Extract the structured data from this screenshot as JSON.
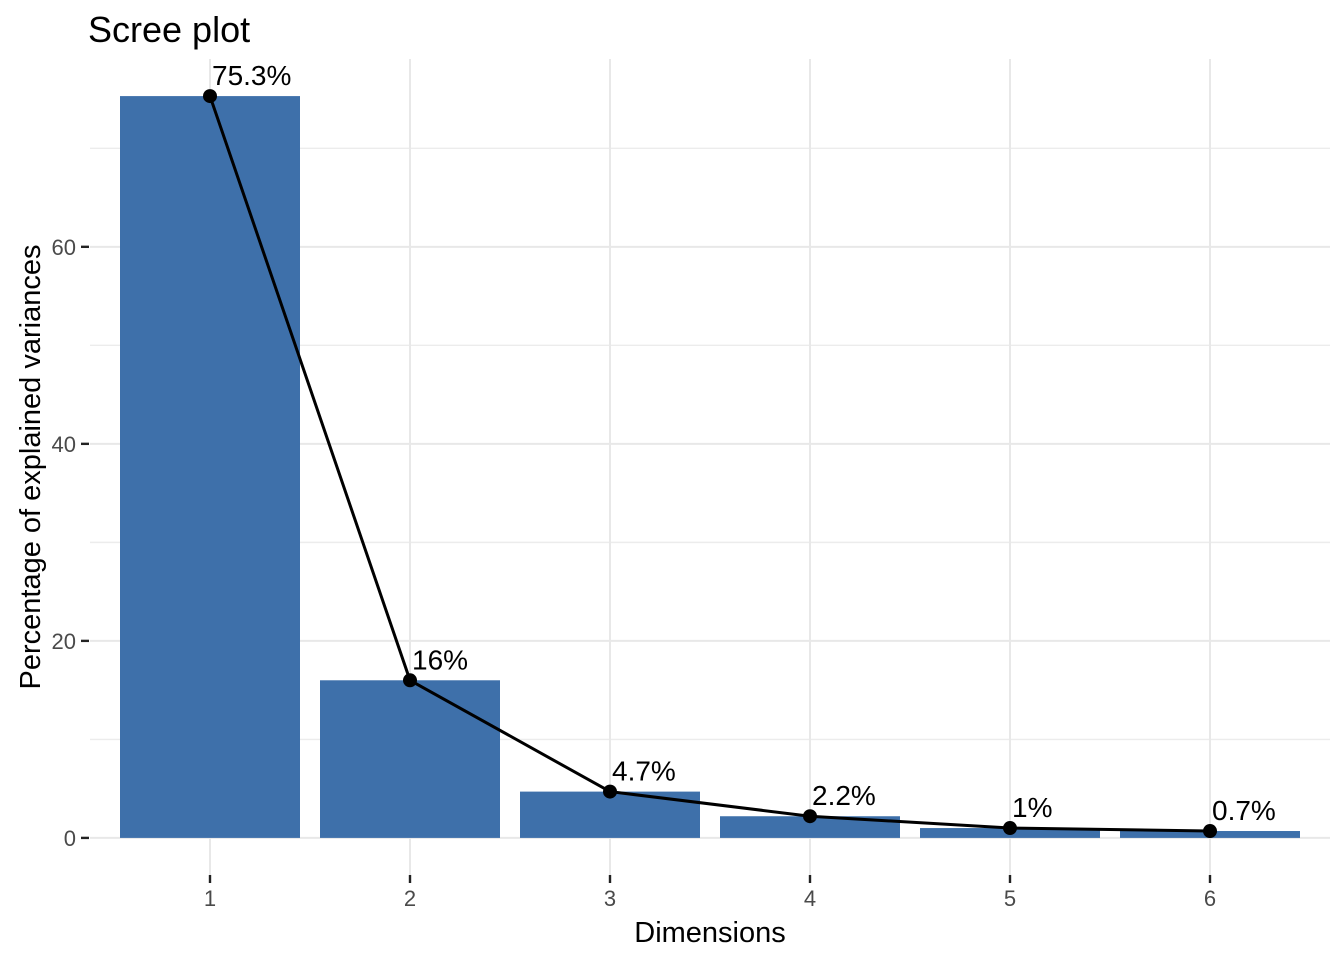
{
  "chart_data": {
    "type": "bar",
    "subtype": "bar-with-line-overlay",
    "title": "Scree plot",
    "xlabel": "Dimensions",
    "ylabel": "Percentage of explained variances",
    "categories": [
      "1",
      "2",
      "3",
      "4",
      "5",
      "6"
    ],
    "values": [
      75.3,
      16,
      4.7,
      2.2,
      1,
      0.7
    ],
    "point_labels": [
      "75.3%",
      "16%",
      "4.7%",
      "2.2%",
      "1%",
      "0.7%"
    ],
    "series": [
      {
        "name": "explained-variance-bars",
        "type": "bar",
        "values": [
          75.3,
          16,
          4.7,
          2.2,
          1,
          0.7
        ]
      },
      {
        "name": "explained-variance-line",
        "type": "line",
        "values": [
          75.3,
          16,
          4.7,
          2.2,
          1,
          0.7
        ]
      }
    ],
    "yticks": [
      0,
      20,
      40,
      60
    ],
    "ytick_labels": [
      "0",
      "20",
      "40",
      "60"
    ],
    "yminor": [
      10,
      30,
      50,
      70
    ],
    "ylim": [
      -3.765,
      79.065
    ],
    "xlim": [
      0.4,
      6.6
    ],
    "bar_width": 0.9,
    "grid": "horizontal major+minor, vertical major only",
    "legend": "none",
    "colors": {
      "bar_fill": "#3E70AA",
      "line": "#000000",
      "point": "#000000",
      "grid_major": "#E8E8E8",
      "grid_minor": "#ECECEC",
      "tick_mark": "#222222",
      "tick_label": "#4A4A4A",
      "title_text": "#000000",
      "axis_title_text": "#000000",
      "background": "#FFFFFF"
    }
  }
}
